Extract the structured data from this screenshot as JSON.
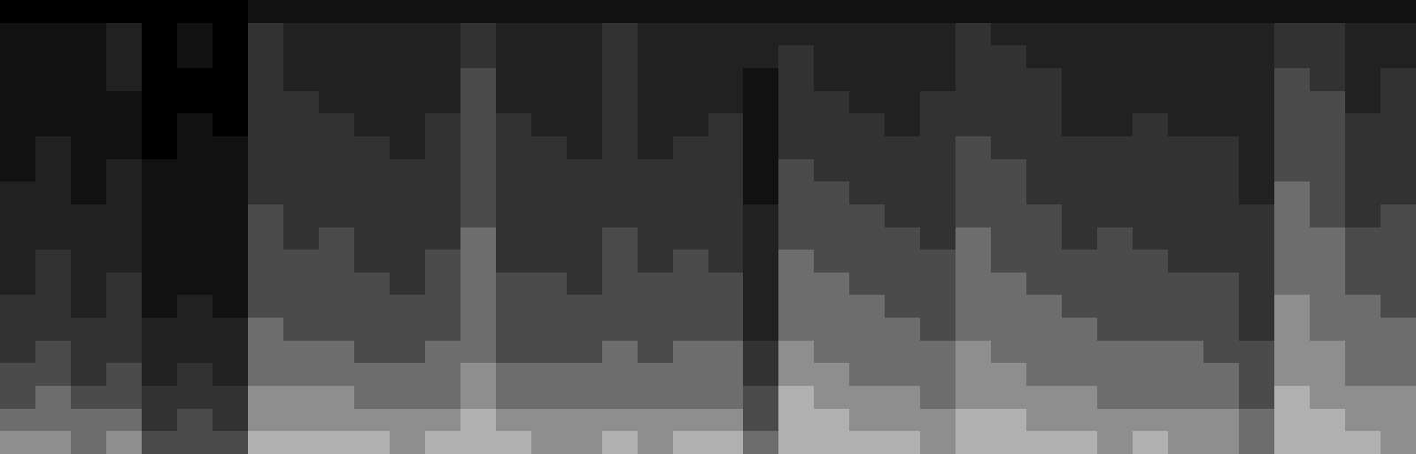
{
  "chart_data": {
    "type": "heatmap",
    "tick_labels": false,
    "grid": false,
    "cells": [
      [
        0,
        0,
        0,
        0,
        0,
        0,
        0,
        1,
        1,
        1,
        1,
        1,
        1,
        1,
        1,
        1,
        1,
        1,
        1,
        1,
        1,
        1,
        1,
        1,
        1,
        1,
        1,
        1,
        1,
        1,
        1,
        1,
        1,
        1,
        1,
        1,
        1,
        1,
        1,
        1
      ],
      [
        1,
        1,
        1,
        2,
        0,
        1,
        0,
        3,
        2,
        2,
        2,
        2,
        2,
        3,
        2,
        2,
        2,
        3,
        2,
        2,
        2,
        2,
        2,
        2,
        2,
        2,
        2,
        3,
        2,
        2,
        2,
        2,
        2,
        2,
        2,
        2,
        3,
        3,
        2,
        2
      ],
      [
        1,
        1,
        1,
        2,
        0,
        1,
        0,
        3,
        2,
        2,
        2,
        2,
        2,
        3,
        2,
        2,
        2,
        3,
        2,
        2,
        2,
        2,
        3,
        2,
        2,
        2,
        2,
        3,
        3,
        2,
        2,
        2,
        2,
        2,
        2,
        2,
        3,
        3,
        2,
        2
      ],
      [
        1,
        1,
        1,
        2,
        0,
        0,
        0,
        3,
        2,
        2,
        2,
        2,
        2,
        4,
        2,
        2,
        2,
        3,
        2,
        2,
        2,
        1,
        3,
        2,
        2,
        2,
        2,
        3,
        3,
        3,
        2,
        2,
        2,
        2,
        2,
        2,
        4,
        3,
        2,
        3
      ],
      [
        1,
        1,
        1,
        1,
        0,
        0,
        0,
        3,
        3,
        2,
        2,
        2,
        2,
        4,
        2,
        2,
        2,
        3,
        2,
        2,
        2,
        1,
        3,
        3,
        2,
        2,
        3,
        3,
        3,
        3,
        2,
        2,
        2,
        2,
        2,
        2,
        4,
        4,
        2,
        3
      ],
      [
        1,
        1,
        1,
        1,
        0,
        1,
        0,
        3,
        3,
        3,
        2,
        2,
        3,
        4,
        3,
        2,
        2,
        3,
        2,
        2,
        3,
        1,
        3,
        3,
        3,
        2,
        3,
        3,
        3,
        3,
        2,
        2,
        3,
        2,
        2,
        2,
        4,
        4,
        3,
        3
      ],
      [
        1,
        2,
        1,
        1,
        0,
        1,
        1,
        3,
        3,
        3,
        3,
        2,
        3,
        4,
        3,
        3,
        2,
        3,
        2,
        3,
        3,
        1,
        3,
        3,
        3,
        3,
        3,
        4,
        3,
        3,
        3,
        3,
        3,
        3,
        3,
        2,
        4,
        4,
        3,
        3
      ],
      [
        1,
        2,
        1,
        2,
        1,
        1,
        1,
        3,
        3,
        3,
        3,
        3,
        3,
        4,
        3,
        3,
        3,
        3,
        3,
        3,
        3,
        1,
        4,
        3,
        3,
        3,
        3,
        4,
        4,
        3,
        3,
        3,
        3,
        3,
        3,
        2,
        4,
        4,
        3,
        3
      ],
      [
        2,
        2,
        1,
        2,
        1,
        1,
        1,
        3,
        3,
        3,
        3,
        3,
        3,
        4,
        3,
        3,
        3,
        3,
        3,
        3,
        3,
        1,
        4,
        4,
        3,
        3,
        3,
        4,
        4,
        3,
        3,
        3,
        3,
        3,
        3,
        2,
        5,
        4,
        3,
        3
      ],
      [
        2,
        2,
        2,
        2,
        1,
        1,
        1,
        4,
        3,
        3,
        3,
        3,
        3,
        4,
        3,
        3,
        3,
        3,
        3,
        3,
        3,
        2,
        4,
        4,
        4,
        3,
        3,
        4,
        4,
        4,
        3,
        3,
        3,
        3,
        3,
        3,
        5,
        4,
        3,
        4
      ],
      [
        2,
        2,
        2,
        2,
        1,
        1,
        1,
        4,
        3,
        4,
        3,
        3,
        3,
        5,
        3,
        3,
        3,
        4,
        3,
        3,
        3,
        2,
        4,
        4,
        4,
        4,
        3,
        5,
        4,
        4,
        3,
        4,
        3,
        3,
        3,
        3,
        5,
        5,
        4,
        4
      ],
      [
        2,
        3,
        2,
        2,
        1,
        1,
        1,
        4,
        4,
        4,
        3,
        3,
        4,
        5,
        3,
        3,
        3,
        4,
        3,
        4,
        3,
        2,
        5,
        4,
        4,
        4,
        4,
        5,
        4,
        4,
        4,
        4,
        4,
        3,
        3,
        3,
        5,
        5,
        4,
        4
      ],
      [
        2,
        3,
        2,
        3,
        1,
        1,
        1,
        4,
        4,
        4,
        4,
        3,
        4,
        5,
        4,
        4,
        3,
        4,
        4,
        4,
        4,
        2,
        5,
        5,
        4,
        4,
        4,
        5,
        5,
        4,
        4,
        4,
        4,
        4,
        4,
        3,
        5,
        5,
        4,
        4
      ],
      [
        3,
        3,
        2,
        3,
        1,
        2,
        1,
        4,
        4,
        4,
        4,
        4,
        4,
        5,
        4,
        4,
        4,
        4,
        4,
        4,
        4,
        2,
        5,
        5,
        5,
        4,
        4,
        5,
        5,
        5,
        4,
        4,
        4,
        4,
        4,
        3,
        6,
        5,
        5,
        4
      ],
      [
        3,
        3,
        3,
        3,
        2,
        2,
        2,
        5,
        4,
        4,
        4,
        4,
        4,
        5,
        4,
        4,
        4,
        4,
        4,
        4,
        4,
        2,
        5,
        5,
        5,
        5,
        4,
        5,
        5,
        5,
        5,
        4,
        4,
        4,
        4,
        3,
        6,
        5,
        5,
        5
      ],
      [
        3,
        4,
        3,
        3,
        2,
        2,
        2,
        5,
        5,
        5,
        4,
        4,
        5,
        5,
        4,
        4,
        4,
        5,
        4,
        5,
        5,
        3,
        6,
        5,
        5,
        5,
        5,
        6,
        5,
        5,
        5,
        5,
        5,
        5,
        4,
        4,
        6,
        6,
        5,
        5
      ],
      [
        4,
        4,
        3,
        4,
        2,
        3,
        2,
        5,
        5,
        5,
        5,
        5,
        5,
        6,
        5,
        5,
        5,
        5,
        5,
        5,
        5,
        3,
        6,
        6,
        5,
        5,
        5,
        6,
        6,
        5,
        5,
        5,
        5,
        5,
        5,
        4,
        6,
        6,
        5,
        5
      ],
      [
        4,
        5,
        4,
        4,
        3,
        3,
        3,
        6,
        6,
        6,
        5,
        5,
        5,
        6,
        5,
        5,
        5,
        5,
        5,
        5,
        5,
        4,
        7,
        6,
        6,
        6,
        5,
        6,
        6,
        6,
        6,
        5,
        5,
        5,
        5,
        4,
        7,
        6,
        6,
        6
      ],
      [
        5,
        5,
        5,
        5,
        3,
        4,
        3,
        6,
        6,
        6,
        6,
        6,
        6,
        7,
        6,
        6,
        6,
        6,
        6,
        6,
        6,
        4,
        7,
        7,
        6,
        6,
        6,
        7,
        7,
        6,
        6,
        6,
        6,
        6,
        6,
        5,
        7,
        7,
        6,
        6
      ],
      [
        6,
        6,
        5,
        6,
        4,
        4,
        4,
        7,
        7,
        7,
        7,
        6,
        7,
        7,
        7,
        6,
        6,
        7,
        6,
        7,
        7,
        5,
        7,
        7,
        7,
        7,
        6,
        7,
        7,
        7,
        7,
        6,
        7,
        6,
        6,
        5,
        7,
        7,
        7,
        6
      ]
    ]
  }
}
